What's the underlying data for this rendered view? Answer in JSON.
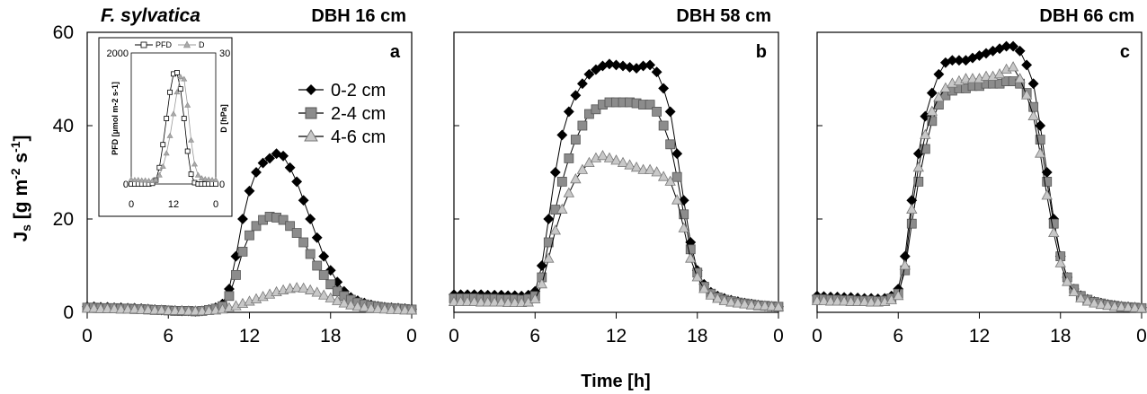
{
  "chart_data": [
    {
      "type": "line",
      "species_label": "F. sylvatica",
      "title": "DBH 16 cm",
      "panel_label": "a",
      "x": [
        0,
        0.5,
        1,
        1.5,
        2,
        2.5,
        3,
        3.5,
        4,
        4.5,
        5,
        5.5,
        6,
        6.5,
        7,
        7.5,
        8,
        8.5,
        9,
        9.5,
        10,
        10.5,
        11,
        11.5,
        12,
        12.5,
        13,
        13.5,
        14,
        14.5,
        15,
        15.5,
        16,
        16.5,
        17,
        17.5,
        18,
        18.5,
        19,
        19.5,
        20,
        20.5,
        21,
        21.5,
        22,
        22.5,
        23,
        23.5,
        24
      ],
      "xticks": [
        "0",
        "6",
        "12",
        "18",
        "0"
      ],
      "ylim": [
        0,
        60
      ],
      "yticks": [
        "0",
        "20",
        "40",
        "60"
      ],
      "ylabel": "Js [g m-2 s-1]",
      "series": [
        {
          "name": "0-2 cm",
          "marker": "diamond",
          "values": [
            1.2,
            1.2,
            1.1,
            1.1,
            1.0,
            1.0,
            0.9,
            0.9,
            0.8,
            0.7,
            0.6,
            0.5,
            0.4,
            0.4,
            0.3,
            0.3,
            0.2,
            0.3,
            0.6,
            1.0,
            1.8,
            5.0,
            12.0,
            20.0,
            26.0,
            30.0,
            32.0,
            33.0,
            34.0,
            33.5,
            31.0,
            28.0,
            24.0,
            20.0,
            16.0,
            12.0,
            9.0,
            6.5,
            4.5,
            3.2,
            2.5,
            2.0,
            1.6,
            1.3,
            1.1,
            1.0,
            0.9,
            0.8,
            0.7
          ]
        },
        {
          "name": "2-4 cm",
          "marker": "square",
          "values": [
            1.0,
            1.0,
            0.9,
            0.9,
            0.9,
            0.8,
            0.8,
            0.7,
            0.7,
            0.6,
            0.5,
            0.5,
            0.4,
            0.3,
            0.3,
            0.3,
            0.2,
            0.3,
            0.5,
            0.8,
            1.3,
            3.5,
            8.0,
            13.0,
            16.5,
            18.5,
            19.8,
            20.5,
            20.3,
            19.8,
            18.5,
            17.0,
            15.0,
            12.5,
            10.0,
            8.0,
            6.0,
            4.5,
            3.5,
            2.7,
            2.1,
            1.7,
            1.4,
            1.2,
            1.0,
            0.9,
            0.8,
            0.7,
            0.6
          ]
        },
        {
          "name": "4-6 cm",
          "marker": "triangle",
          "values": [
            0.8,
            0.8,
            0.7,
            0.7,
            0.7,
            0.6,
            0.6,
            0.6,
            0.5,
            0.5,
            0.4,
            0.4,
            0.3,
            0.3,
            0.3,
            0.2,
            0.2,
            0.2,
            0.3,
            0.4,
            0.6,
            0.9,
            1.3,
            1.8,
            2.3,
            2.8,
            3.3,
            3.8,
            4.3,
            4.7,
            5.0,
            5.2,
            5.1,
            4.7,
            4.2,
            3.6,
            3.0,
            2.4,
            1.9,
            1.5,
            1.2,
            1.0,
            0.8,
            0.7,
            0.6,
            0.5,
            0.5,
            0.4,
            0.4
          ]
        }
      ],
      "inset": {
        "type": "line",
        "x": [
          0,
          1,
          2,
          3,
          4,
          5,
          6,
          7,
          8,
          9,
          10,
          11,
          12,
          13,
          14,
          15,
          16,
          17,
          18,
          19,
          20,
          21,
          22,
          23,
          24
        ],
        "xticks": [
          "0",
          "12",
          "0"
        ],
        "left_ylabel": "PFD [µmol m-2 s-1]",
        "left_ylim": [
          0,
          2000
        ],
        "left_yticks": [
          "0",
          "2000"
        ],
        "right_ylabel": "D [hPa]",
        "right_ylim": [
          0,
          30
        ],
        "right_yticks": [
          "0",
          "30"
        ],
        "series": [
          {
            "name": "PFD",
            "axis": "left",
            "marker": "open-square",
            "values": [
              0,
              0,
              0,
              0,
              0,
              0,
              10,
              60,
              250,
              600,
              1000,
              1400,
              1680,
              1700,
              1450,
              1000,
              500,
              150,
              20,
              0,
              0,
              0,
              0,
              0,
              0
            ]
          },
          {
            "name": "D",
            "axis": "right",
            "marker": "gray-triangle",
            "values": [
              1.0,
              0.9,
              0.9,
              0.8,
              0.8,
              0.7,
              0.7,
              0.9,
              2.0,
              4.0,
              7.0,
              11.0,
              16.0,
              21.0,
              24.5,
              24.0,
              18.0,
              10.0,
              4.5,
              2.0,
              1.3,
              1.1,
              1.0,
              0.9,
              0.9
            ]
          }
        ]
      }
    },
    {
      "type": "line",
      "title": "DBH 58 cm",
      "panel_label": "b",
      "x": [
        0,
        0.5,
        1,
        1.5,
        2,
        2.5,
        3,
        3.5,
        4,
        4.5,
        5,
        5.5,
        6,
        6.5,
        7,
        7.5,
        8,
        8.5,
        9,
        9.5,
        10,
        10.5,
        11,
        11.5,
        12,
        12.5,
        13,
        13.5,
        14,
        14.5,
        15,
        15.5,
        16,
        16.5,
        17,
        17.5,
        18,
        18.5,
        19,
        19.5,
        20,
        20.5,
        21,
        21.5,
        22,
        22.5,
        23,
        23.5,
        24
      ],
      "xticks": [
        "0",
        "6",
        "12",
        "18",
        "0"
      ],
      "ylim": [
        0,
        60
      ],
      "series": [
        {
          "name": "0-2 cm",
          "marker": "diamond",
          "values": [
            3.8,
            3.8,
            3.8,
            3.8,
            3.8,
            3.7,
            3.7,
            3.7,
            3.6,
            3.6,
            3.5,
            3.7,
            4.5,
            10.0,
            20.0,
            30.0,
            38.0,
            43.0,
            46.5,
            49.0,
            51.0,
            52.0,
            52.8,
            53.2,
            53.0,
            52.8,
            52.5,
            52.3,
            52.8,
            53.0,
            51.5,
            48.0,
            43.0,
            34.0,
            24.0,
            15.0,
            9.0,
            6.0,
            4.3,
            3.5,
            3.0,
            2.6,
            2.3,
            2.0,
            1.8,
            1.6,
            1.4,
            1.3,
            1.2
          ]
        },
        {
          "name": "2-4 cm",
          "marker": "square",
          "values": [
            3.0,
            3.0,
            3.0,
            3.0,
            2.9,
            2.9,
            2.9,
            2.8,
            2.8,
            2.8,
            2.7,
            2.9,
            3.5,
            7.5,
            15.0,
            22.0,
            28.0,
            33.0,
            37.0,
            40.0,
            42.5,
            43.5,
            44.5,
            45.0,
            45.0,
            45.0,
            45.0,
            44.8,
            44.5,
            44.5,
            43.0,
            40.0,
            36.0,
            29.0,
            21.0,
            13.5,
            8.5,
            5.5,
            4.0,
            3.2,
            2.7,
            2.4,
            2.1,
            1.9,
            1.7,
            1.5,
            1.4,
            1.3,
            1.2
          ]
        },
        {
          "name": "4-6 cm",
          "marker": "triangle",
          "values": [
            2.2,
            2.2,
            2.2,
            2.2,
            2.1,
            2.1,
            2.1,
            2.1,
            2.0,
            2.0,
            2.0,
            2.1,
            2.8,
            6.0,
            11.5,
            17.5,
            22.0,
            25.5,
            28.5,
            30.5,
            32.0,
            33.0,
            33.5,
            33.0,
            32.5,
            32.0,
            31.5,
            31.0,
            30.5,
            30.5,
            30.0,
            29.0,
            28.0,
            24.0,
            18.0,
            11.5,
            7.5,
            5.0,
            3.6,
            2.9,
            2.4,
            2.1,
            1.9,
            1.7,
            1.5,
            1.4,
            1.3,
            1.2,
            1.1
          ]
        }
      ]
    },
    {
      "type": "line",
      "title": "DBH 66 cm",
      "panel_label": "c",
      "x": [
        0,
        0.5,
        1,
        1.5,
        2,
        2.5,
        3,
        3.5,
        4,
        4.5,
        5,
        5.5,
        6,
        6.5,
        7,
        7.5,
        8,
        8.5,
        9,
        9.5,
        10,
        10.5,
        11,
        11.5,
        12,
        12.5,
        13,
        13.5,
        14,
        14.5,
        15,
        15.5,
        16,
        16.5,
        17,
        17.5,
        18,
        18.5,
        19,
        19.5,
        20,
        20.5,
        21,
        21.5,
        22,
        22.5,
        23,
        23.5,
        24
      ],
      "xticks": [
        "0",
        "6",
        "12",
        "18",
        "0"
      ],
      "ylim": [
        0,
        60
      ],
      "xlabel": "Time [h]",
      "series": [
        {
          "name": "0-2 cm",
          "marker": "diamond",
          "values": [
            3.5,
            3.4,
            3.3,
            3.3,
            3.2,
            3.2,
            3.1,
            3.0,
            3.0,
            2.9,
            3.0,
            3.5,
            5.0,
            12.0,
            24.0,
            34.0,
            42.0,
            47.0,
            51.0,
            53.5,
            54.0,
            54.0,
            54.0,
            54.5,
            55.0,
            55.5,
            56.0,
            56.5,
            57.0,
            57.0,
            56.0,
            53.0,
            49.0,
            40.0,
            30.0,
            20.0,
            12.0,
            7.5,
            5.0,
            3.6,
            2.8,
            2.3,
            2.0,
            1.7,
            1.5,
            1.3,
            1.2,
            1.1,
            1.0
          ]
        },
        {
          "name": "2-4 cm",
          "marker": "square",
          "values": [
            2.8,
            2.8,
            2.7,
            2.7,
            2.6,
            2.6,
            2.5,
            2.5,
            2.5,
            2.4,
            2.5,
            3.0,
            4.0,
            9.0,
            19.0,
            28.0,
            35.0,
            41.0,
            44.5,
            46.5,
            47.5,
            48.0,
            48.0,
            48.5,
            48.5,
            49.0,
            49.0,
            49.0,
            49.5,
            49.5,
            49.0,
            47.0,
            44.0,
            37.0,
            28.0,
            19.0,
            12.0,
            7.5,
            5.0,
            3.5,
            2.7,
            2.2,
            1.9,
            1.6,
            1.4,
            1.2,
            1.1,
            1.0,
            0.9
          ]
        },
        {
          "name": "4-6 cm",
          "marker": "triangle",
          "values": [
            2.4,
            2.4,
            2.3,
            2.3,
            2.3,
            2.2,
            2.2,
            2.2,
            2.1,
            2.1,
            2.2,
            2.6,
            3.5,
            10.0,
            22.0,
            31.0,
            38.0,
            43.0,
            46.0,
            48.0,
            49.0,
            49.5,
            50.0,
            50.0,
            50.0,
            50.5,
            50.5,
            51.0,
            52.0,
            52.5,
            50.0,
            46.5,
            42.0,
            34.0,
            25.0,
            17.0,
            10.5,
            6.5,
            4.3,
            3.0,
            2.3,
            1.9,
            1.6,
            1.4,
            1.2,
            1.1,
            1.0,
            0.9,
            0.8
          ]
        }
      ]
    }
  ]
}
